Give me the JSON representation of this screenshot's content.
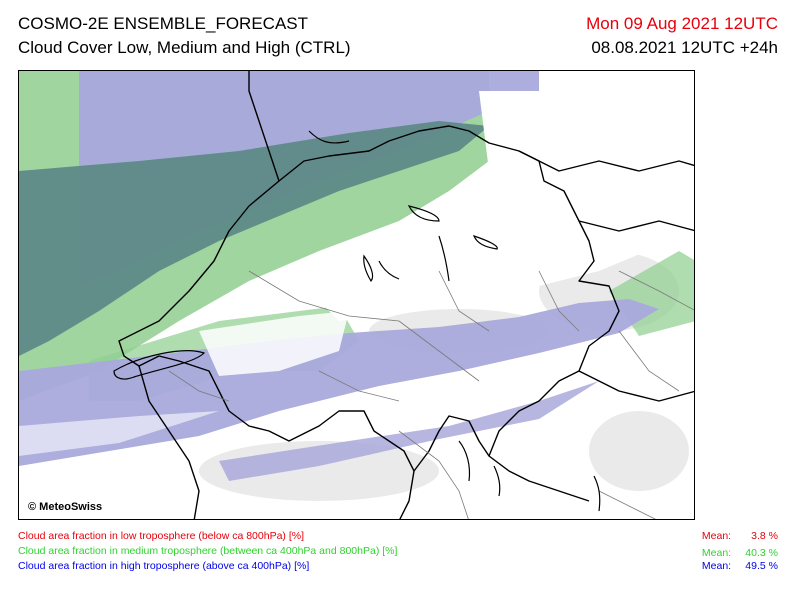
{
  "header": {
    "model": "COSMO-2E ENSEMBLE_FORECAST",
    "product": "Cloud Cover Low, Medium and High (CTRL)",
    "valid_time": "Mon 09 Aug 2021 12UTC",
    "run_info": "08.08.2021 12UTC +24h"
  },
  "map": {
    "copyright": "© MeteoSwiss"
  },
  "legend": [
    {
      "label": "Cloud area fraction in low troposphere (below ca 800hPa) [%]",
      "mean_label": "Mean:",
      "mean_value": "3.8 %",
      "color": "#e8000b"
    },
    {
      "label": "Cloud area fraction in medium troposphere (between ca 400hPa and 800hPa) [%]",
      "mean_label": "Mean:",
      "mean_value": "40.3 %",
      "color": "#2fd22f"
    },
    {
      "label": "Cloud area fraction in high troposphere (above ca 400hPa) [%]",
      "mean_label": "Mean:",
      "mean_value": "49.5 %",
      "color": "#0000ee"
    }
  ],
  "colors": {
    "medium_cloud": "#8fce8f",
    "high_cloud": "#a9a9dc",
    "overlap": "#5e8a88",
    "terrain": "#e3e3e3"
  }
}
